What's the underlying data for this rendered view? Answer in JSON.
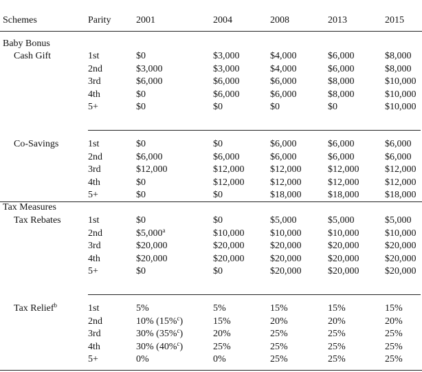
{
  "header": [
    "Schemes",
    "Parity",
    "2001",
    "2004",
    "2008",
    "2013",
    "2015"
  ],
  "groups": [
    {
      "title": "Baby Bonus",
      "schemes": [
        {
          "name": "Cash Gift",
          "rows": [
            [
              "1st",
              "$0",
              "$3,000",
              "$4,000",
              "$6,000",
              "$8,000"
            ],
            [
              "2nd",
              "$3,000",
              "$3,000",
              "$4,000",
              "$6,000",
              "$8,000"
            ],
            [
              "3rd",
              "$6,000",
              "$6,000",
              "$6,000",
              "$8,000",
              "$10,000"
            ],
            [
              "4th",
              "$0",
              "$6,000",
              "$6,000",
              "$8,000",
              "$10,000"
            ],
            [
              "5+",
              "$0",
              "$0",
              "$0",
              "$0",
              "$10,000"
            ]
          ]
        },
        {
          "name": "Co-Savings",
          "rows": [
            [
              "1st",
              "$0",
              "$0",
              "$6,000",
              "$6,000",
              "$6,000"
            ],
            [
              "2nd",
              "$6,000",
              "$6,000",
              "$6,000",
              "$6,000",
              "$6,000"
            ],
            [
              "3rd",
              "$12,000",
              "$12,000",
              "$12,000",
              "$12,000",
              "$12,000"
            ],
            [
              "4th",
              "$0",
              "$12,000",
              "$12,000",
              "$12,000",
              "$12,000"
            ],
            [
              "5+",
              "$0",
              "$0",
              "$18,000",
              "$18,000",
              "$18,000"
            ]
          ]
        }
      ]
    },
    {
      "title": "Tax Measures",
      "schemes": [
        {
          "name": "Tax Rebates",
          "rows": [
            [
              "1st",
              "$0",
              "$0",
              "$5,000",
              "$5,000",
              "$5,000"
            ],
            [
              "2nd",
              {
                "text": "$5,000",
                "sup": "a"
              },
              "$10,000",
              "$10,000",
              "$10,000",
              "$10,000"
            ],
            [
              "3rd",
              "$20,000",
              "$20,000",
              "$20,000",
              "$20,000",
              "$20,000"
            ],
            [
              "4th",
              "$20,000",
              "$20,000",
              "$20,000",
              "$20,000",
              "$20,000"
            ],
            [
              "5+",
              "$0",
              "$0",
              "$20,000",
              "$20,000",
              "$20,000"
            ]
          ]
        },
        {
          "name": {
            "text": "Tax Relief",
            "sup": "b"
          },
          "rows": [
            [
              "1st",
              "5%",
              "5%",
              "15%",
              "15%",
              "15%"
            ],
            [
              "2nd",
              {
                "text": "10% (15%",
                "sup": "c",
                "after": ")"
              },
              "15%",
              "20%",
              "20%",
              "20%"
            ],
            [
              "3rd",
              {
                "text": "30% (35%",
                "sup": "c",
                "after": ")"
              },
              "20%",
              "25%",
              "25%",
              "25%"
            ],
            [
              "4th",
              {
                "text": "30% (40%",
                "sup": "c",
                "after": ")"
              },
              "25%",
              "25%",
              "25%",
              "25%"
            ],
            [
              "5+",
              "0%",
              "0%",
              "25%",
              "25%",
              "25%"
            ]
          ]
        }
      ]
    }
  ]
}
